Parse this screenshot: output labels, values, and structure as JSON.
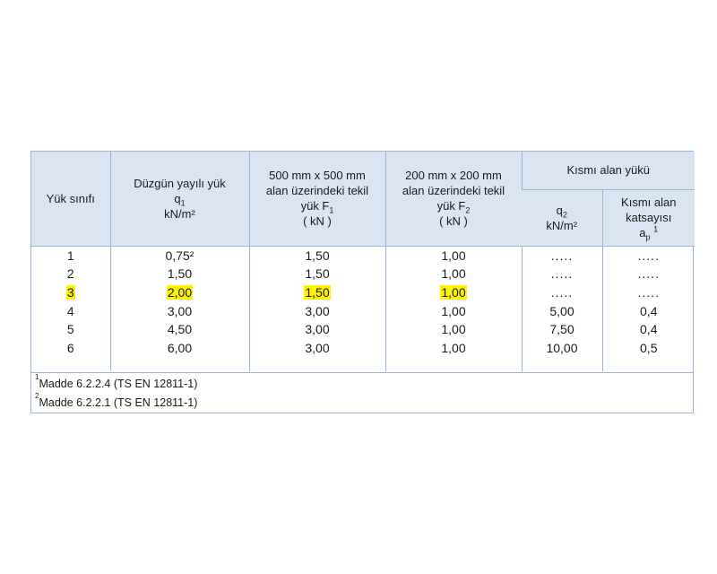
{
  "headers": {
    "col1": "Yük sınıfı",
    "col2": {
      "l1": "Düzgün yayılı yük",
      "l2": "q",
      "l2_sub": "1",
      "l3": "kN/m²"
    },
    "col3": {
      "l1": "500 mm x 500 mm",
      "l2": "alan üzerindeki tekil",
      "l3": "yük F",
      "l3_sub": "1",
      "l4": "( kN )"
    },
    "col4": {
      "l1": "200 mm x 200 mm",
      "l2": "alan üzerindeki tekil",
      "l3": "yük F",
      "l3_sub": "2",
      "l4": "( kN )"
    },
    "group": "Kısmı alan yükü",
    "col5": {
      "l1": "q",
      "l1_sub": "2",
      "l2": "kN/m²"
    },
    "col6": {
      "l1": "Kısmı alan",
      "l2": "katsayısı",
      "l3": "a",
      "l3_sub": "p",
      "l3_sup": "1"
    }
  },
  "rows": [
    {
      "c1": "1",
      "c2": "0,75²",
      "c3": "1,50",
      "c4": "1,00",
      "c5": ".....",
      "c6": "....."
    },
    {
      "c1": "2",
      "c2": "1,50",
      "c3": "1,50",
      "c4": "1,00",
      "c5": ".....",
      "c6": "....."
    },
    {
      "c1": "3",
      "c2": "2,00",
      "c3": "1,50",
      "c4": "1,00",
      "c5": ".....",
      "c6": "....."
    },
    {
      "c1": "4",
      "c2": "3,00",
      "c3": "3,00",
      "c4": "1,00",
      "c5": "5,00",
      "c6": "0,4"
    },
    {
      "c1": "5",
      "c2": "4,50",
      "c3": "3,00",
      "c4": "1,00",
      "c5": "7,50",
      "c6": "0,4"
    },
    {
      "c1": "6",
      "c2": "6,00",
      "c3": "3,00",
      "c4": "1,00",
      "c5": "10,00",
      "c6": "0,5"
    }
  ],
  "highlight_color": "#fff200",
  "highlighted_row": "3",
  "notes": [
    {
      "sup": "1",
      "text": "Madde 6.2.2.4 (TS EN 12811-1)"
    },
    {
      "sup": "2",
      "text": "Madde 6.2.2.1 (TS EN 12811-1)"
    }
  ]
}
